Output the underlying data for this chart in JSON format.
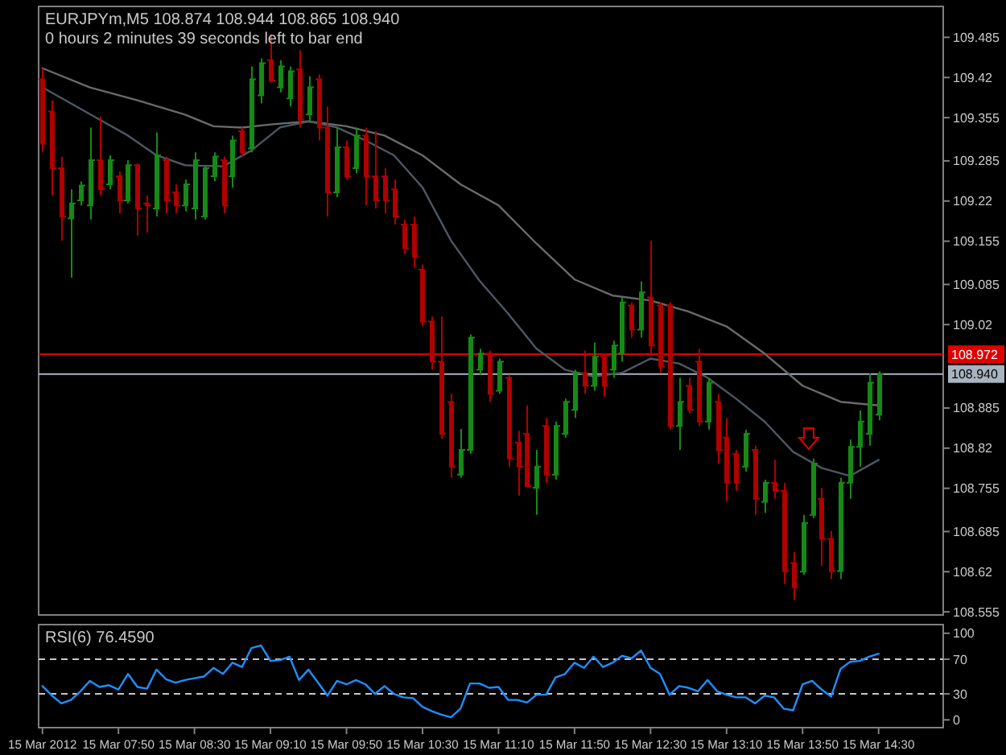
{
  "chart_data": [
    {
      "type": "candlestick",
      "title": "EURJPYm,M5  108.874 108.944 108.865 108.940",
      "subtitle": "0 hours 2 minutes 39 seconds left to bar end",
      "x": [
        "2012-03-15T07:10",
        "2012-03-15T07:15",
        "2012-03-15T07:20",
        "2012-03-15T07:25",
        "2012-03-15T07:30",
        "2012-03-15T07:35",
        "2012-03-15T07:40",
        "2012-03-15T07:45",
        "2012-03-15T07:50",
        "2012-03-15T07:55",
        "2012-03-15T08:00",
        "2012-03-15T08:05",
        "2012-03-15T08:10",
        "2012-03-15T08:15",
        "2012-03-15T08:20",
        "2012-03-15T08:25",
        "2012-03-15T08:30",
        "2012-03-15T08:35",
        "2012-03-15T08:40",
        "2012-03-15T08:45",
        "2012-03-15T08:50",
        "2012-03-15T08:55",
        "2012-03-15T09:00",
        "2012-03-15T09:05",
        "2012-03-15T09:10",
        "2012-03-15T09:15",
        "2012-03-15T09:20",
        "2012-03-15T09:25",
        "2012-03-15T09:30",
        "2012-03-15T09:35",
        "2012-03-15T09:40",
        "2012-03-15T09:45",
        "2012-03-15T09:50",
        "2012-03-15T09:55",
        "2012-03-15T10:00",
        "2012-03-15T10:05",
        "2012-03-15T10:10",
        "2012-03-15T10:15",
        "2012-03-15T10:20",
        "2012-03-15T10:25",
        "2012-03-15T10:30",
        "2012-03-15T10:35",
        "2012-03-15T10:40",
        "2012-03-15T10:45",
        "2012-03-15T10:50",
        "2012-03-15T10:55",
        "2012-03-15T11:00",
        "2012-03-15T11:05",
        "2012-03-15T11:10",
        "2012-03-15T11:15",
        "2012-03-15T11:20",
        "2012-03-15T11:25",
        "2012-03-15T11:30",
        "2012-03-15T11:35",
        "2012-03-15T11:40",
        "2012-03-15T11:45",
        "2012-03-15T11:50",
        "2012-03-15T11:55",
        "2012-03-15T12:00",
        "2012-03-15T12:05",
        "2012-03-15T12:10",
        "2012-03-15T12:15",
        "2012-03-15T12:20",
        "2012-03-15T12:25",
        "2012-03-15T12:30",
        "2012-03-15T12:35",
        "2012-03-15T12:40",
        "2012-03-15T12:45",
        "2012-03-15T12:50",
        "2012-03-15T12:55",
        "2012-03-15T13:00",
        "2012-03-15T13:05",
        "2012-03-15T13:10",
        "2012-03-15T13:15",
        "2012-03-15T13:20",
        "2012-03-15T13:25",
        "2012-03-15T13:30",
        "2012-03-15T13:35",
        "2012-03-15T13:40",
        "2012-03-15T13:45",
        "2012-03-15T13:50",
        "2012-03-15T13:55",
        "2012-03-15T14:00",
        "2012-03-15T14:05",
        "2012-03-15T14:10",
        "2012-03-15T14:15",
        "2012-03-15T14:20",
        "2012-03-15T14:25",
        "2012-03-15T14:30"
      ],
      "ohlc": [
        [
          109.417,
          109.435,
          109.299,
          109.313
        ],
        [
          109.365,
          109.383,
          109.229,
          109.273
        ],
        [
          109.273,
          109.292,
          109.156,
          109.195
        ],
        [
          109.192,
          109.239,
          109.096,
          109.216
        ],
        [
          109.221,
          109.252,
          109.213,
          109.245
        ],
        [
          109.213,
          109.339,
          109.19,
          109.286
        ],
        [
          109.286,
          109.357,
          109.229,
          109.239
        ],
        [
          109.247,
          109.294,
          109.239,
          109.286
        ],
        [
          109.26,
          109.268,
          109.2,
          109.221
        ],
        [
          109.221,
          109.286,
          109.216,
          109.278
        ],
        [
          109.278,
          109.281,
          109.164,
          109.208
        ],
        [
          109.216,
          109.229,
          109.169,
          109.213
        ],
        [
          109.208,
          109.331,
          109.195,
          109.294
        ],
        [
          109.286,
          109.292,
          109.2,
          109.221
        ],
        [
          109.234,
          109.247,
          109.2,
          109.213
        ],
        [
          109.213,
          109.255,
          109.203,
          109.247
        ],
        [
          109.208,
          109.299,
          109.19,
          109.286
        ],
        [
          109.195,
          109.278,
          109.19,
          109.273
        ],
        [
          109.26,
          109.299,
          109.252,
          109.292
        ],
        [
          109.286,
          109.292,
          109.2,
          109.213
        ],
        [
          109.26,
          109.326,
          109.242,
          109.318
        ],
        [
          109.333,
          109.339,
          109.292,
          109.299
        ],
        [
          109.305,
          109.438,
          109.299,
          109.417
        ],
        [
          109.391,
          109.451,
          109.378,
          109.443
        ],
        [
          109.448,
          109.49,
          109.412,
          109.415
        ],
        [
          109.404,
          109.448,
          109.396,
          109.438
        ],
        [
          109.386,
          109.438,
          109.373,
          109.43
        ],
        [
          109.433,
          109.464,
          109.339,
          109.352
        ],
        [
          109.36,
          109.422,
          109.347,
          109.404
        ],
        [
          109.417,
          109.425,
          109.318,
          109.339
        ],
        [
          109.339,
          109.373,
          109.195,
          109.234
        ],
        [
          109.234,
          109.339,
          109.226,
          109.307
        ],
        [
          109.307,
          109.318,
          109.255,
          109.26
        ],
        [
          109.273,
          109.339,
          109.265,
          109.326
        ],
        [
          109.326,
          109.339,
          109.213,
          109.26
        ],
        [
          109.26,
          109.333,
          109.208,
          109.221
        ],
        [
          109.26,
          109.273,
          109.2,
          109.221
        ],
        [
          109.239,
          109.255,
          109.182,
          109.195
        ],
        [
          109.182,
          109.19,
          109.135,
          109.143
        ],
        [
          109.182,
          109.195,
          109.112,
          109.13
        ],
        [
          109.109,
          109.117,
          109.017,
          109.025
        ],
        [
          109.025,
          109.033,
          108.947,
          108.96
        ],
        [
          108.96,
          109.033,
          108.835,
          108.843
        ],
        [
          108.895,
          108.908,
          108.772,
          108.79
        ],
        [
          108.777,
          108.851,
          108.772,
          108.817
        ],
        [
          108.817,
          109.004,
          108.811,
          108.999
        ],
        [
          108.947,
          108.981,
          108.939,
          108.973
        ],
        [
          108.973,
          108.978,
          108.895,
          108.908
        ],
        [
          108.913,
          108.965,
          108.908,
          108.96
        ],
        [
          108.934,
          108.939,
          108.79,
          108.803
        ],
        [
          108.829,
          108.848,
          108.743,
          108.79
        ],
        [
          108.843,
          108.889,
          108.756,
          108.758
        ],
        [
          108.756,
          108.817,
          108.712,
          108.79
        ],
        [
          108.856,
          108.869,
          108.764,
          108.777
        ],
        [
          108.777,
          108.863,
          108.769,
          108.856
        ],
        [
          108.843,
          108.9,
          108.837,
          108.895
        ],
        [
          108.882,
          108.947,
          108.869,
          108.942
        ],
        [
          108.942,
          108.978,
          108.908,
          108.921
        ],
        [
          108.921,
          108.991,
          108.913,
          108.968
        ],
        [
          108.968,
          108.973,
          108.903,
          108.921
        ],
        [
          108.947,
          108.994,
          108.934,
          108.986
        ],
        [
          108.973,
          109.064,
          108.96,
          109.056
        ],
        [
          109.051,
          109.056,
          108.999,
          109.012
        ],
        [
          109.012,
          109.09,
          108.999,
          109.072
        ],
        [
          109.064,
          109.156,
          108.973,
          108.986
        ],
        [
          109.051,
          109.056,
          108.942,
          108.952
        ],
        [
          109.051,
          109.056,
          108.85,
          108.856
        ],
        [
          108.856,
          108.934,
          108.817,
          108.895
        ],
        [
          108.921,
          108.934,
          108.876,
          108.882
        ],
        [
          108.96,
          108.981,
          108.856,
          108.863
        ],
        [
          108.863,
          108.934,
          108.85,
          108.926
        ],
        [
          108.895,
          108.908,
          108.795,
          108.817
        ],
        [
          108.837,
          108.869,
          108.733,
          108.764
        ],
        [
          108.811,
          108.817,
          108.751,
          108.764
        ],
        [
          108.79,
          108.85,
          108.782,
          108.843
        ],
        [
          108.817,
          108.824,
          108.712,
          108.738
        ],
        [
          108.733,
          108.769,
          108.715,
          108.764
        ],
        [
          108.764,
          108.801,
          108.738,
          108.751
        ],
        [
          108.751,
          108.764,
          108.6,
          108.621
        ],
        [
          108.634,
          108.652,
          108.574,
          108.595
        ],
        [
          108.62,
          108.712,
          108.615,
          108.699
        ],
        [
          108.712,
          108.803,
          108.707,
          108.795
        ],
        [
          108.738,
          108.756,
          108.629,
          108.673
        ],
        [
          108.673,
          108.686,
          108.608,
          108.621
        ],
        [
          108.621,
          108.772,
          108.608,
          108.764
        ],
        [
          108.764,
          108.834,
          108.738,
          108.822
        ],
        [
          108.822,
          108.881,
          108.79,
          108.863
        ],
        [
          108.843,
          108.941,
          108.824,
          108.926
        ],
        [
          108.874,
          108.944,
          108.865,
          108.94
        ]
      ],
      "colors": [
        "#b00000",
        "#b00000",
        "#b00000",
        "#168a16",
        "#168a16",
        "#168a16",
        "#b00000",
        "#168a16",
        "#b00000",
        "#168a16",
        "#b00000",
        "#b00000",
        "#168a16",
        "#b00000",
        "#b00000",
        "#168a16",
        "#168a16",
        "#168a16",
        "#168a16",
        "#b00000",
        "#168a16",
        "#b00000",
        "#168a16",
        "#168a16",
        "#b00000",
        "#168a16",
        "#168a16",
        "#b00000",
        "#168a16",
        "#b00000",
        "#b00000",
        "#168a16",
        "#b00000",
        "#168a16",
        "#b00000",
        "#b00000",
        "#b00000",
        "#b00000",
        "#b00000",
        "#b00000",
        "#b00000",
        "#b00000",
        "#b00000",
        "#b00000",
        "#168a16",
        "#168a16",
        "#168a16",
        "#b00000",
        "#168a16",
        "#b00000",
        "#b00000",
        "#b00000",
        "#168a16",
        "#b00000",
        "#168a16",
        "#168a16",
        "#168a16",
        "#b00000",
        "#168a16",
        "#b00000",
        "#168a16",
        "#168a16",
        "#b00000",
        "#168a16",
        "#b00000",
        "#b00000",
        "#b00000",
        "#168a16",
        "#b00000",
        "#b00000",
        "#168a16",
        "#b00000",
        "#b00000",
        "#b00000",
        "#168a16",
        "#b00000",
        "#168a16",
        "#b00000",
        "#b00000",
        "#b00000",
        "#168a16",
        "#168a16",
        "#b00000",
        "#b00000",
        "#168a16",
        "#168a16",
        "#168a16",
        "#168a16",
        "#168a16"
      ],
      "series": [
        {
          "type": "line",
          "color": "#6a6a6a",
          "x": [
            "2012-03-15T07:10",
            "2012-03-15T07:35",
            "2012-03-15T08:00",
            "2012-03-15T08:25",
            "2012-03-15T08:40",
            "2012-03-15T08:55",
            "2012-03-15T09:10",
            "2012-03-15T09:30",
            "2012-03-15T09:50",
            "2012-03-15T10:10",
            "2012-03-15T10:30",
            "2012-03-15T10:50",
            "2012-03-15T11:10",
            "2012-03-15T11:30",
            "2012-03-15T11:50",
            "2012-03-15T12:10",
            "2012-03-15T12:30",
            "2012-03-15T12:50",
            "2012-03-15T13:10",
            "2012-03-15T13:30",
            "2012-03-15T13:50",
            "2012-03-15T14:10",
            "2012-03-15T14:30"
          ],
          "values": [
            109.435,
            109.404,
            109.383,
            109.36,
            109.341,
            109.339,
            109.344,
            109.349,
            109.341,
            109.326,
            109.294,
            109.247,
            109.213,
            109.151,
            109.093,
            109.067,
            109.059,
            109.041,
            109.017,
            108.973,
            108.921,
            108.895,
            108.889
          ]
        },
        {
          "type": "line",
          "color": "#4c5862",
          "x": [
            "2012-03-15T07:10",
            "2012-03-15T07:25",
            "2012-03-15T07:40",
            "2012-03-15T07:55",
            "2012-03-15T08:10",
            "2012-03-15T08:25",
            "2012-03-15T08:45",
            "2012-03-15T09:00",
            "2012-03-15T09:15",
            "2012-03-15T09:30",
            "2012-03-15T09:45",
            "2012-03-15T10:00",
            "2012-03-15T10:15",
            "2012-03-15T10:30",
            "2012-03-15T10:45",
            "2012-03-15T11:00",
            "2012-03-15T11:15",
            "2012-03-15T11:30",
            "2012-03-15T11:45",
            "2012-03-15T12:00",
            "2012-03-15T12:15",
            "2012-03-15T12:30",
            "2012-03-15T12:45",
            "2012-03-15T13:00",
            "2012-03-15T13:15",
            "2012-03-15T13:30",
            "2012-03-15T13:45",
            "2012-03-15T14:00",
            "2012-03-15T14:15",
            "2012-03-15T14:30"
          ],
          "values": [
            109.404,
            109.378,
            109.352,
            109.326,
            109.294,
            109.278,
            109.276,
            109.302,
            109.339,
            109.349,
            109.339,
            109.318,
            109.294,
            109.242,
            109.156,
            109.091,
            109.038,
            108.981,
            108.947,
            108.936,
            108.942,
            108.965,
            108.957,
            108.934,
            108.9,
            108.863,
            108.814,
            108.788,
            108.775,
            108.801
          ]
        }
      ],
      "xlim": [
        "2012-03-15T07:08",
        "2012-03-15T15:04"
      ],
      "ylim": [
        108.55,
        109.535
      ],
      "yticks": [
        109.485,
        109.42,
        109.355,
        109.285,
        109.22,
        109.155,
        109.085,
        109.02,
        108.885,
        108.82,
        108.755,
        108.685,
        108.62,
        108.555
      ],
      "tick_labels": "y",
      "ref_lines": [
        {
          "axis": "y",
          "value": 108.972,
          "label": "108.972",
          "color": "#e00000"
        },
        {
          "axis": "y",
          "value": 108.94,
          "label": "108.940",
          "color": "#a8b4c0"
        }
      ]
    },
    {
      "type": "line",
      "title": "RSI(6) 76.4590",
      "x": [
        "2012-03-15T07:10",
        "2012-03-15T07:15",
        "2012-03-15T07:20",
        "2012-03-15T07:25",
        "2012-03-15T07:30",
        "2012-03-15T07:35",
        "2012-03-15T07:40",
        "2012-03-15T07:45",
        "2012-03-15T07:50",
        "2012-03-15T07:55",
        "2012-03-15T08:00",
        "2012-03-15T08:05",
        "2012-03-15T08:10",
        "2012-03-15T08:15",
        "2012-03-15T08:20",
        "2012-03-15T08:25",
        "2012-03-15T08:30",
        "2012-03-15T08:35",
        "2012-03-15T08:40",
        "2012-03-15T08:45",
        "2012-03-15T08:50",
        "2012-03-15T08:55",
        "2012-03-15T09:00",
        "2012-03-15T09:05",
        "2012-03-15T09:10",
        "2012-03-15T09:15",
        "2012-03-15T09:20",
        "2012-03-15T09:25",
        "2012-03-15T09:30",
        "2012-03-15T09:35",
        "2012-03-15T09:40",
        "2012-03-15T09:45",
        "2012-03-15T09:50",
        "2012-03-15T09:55",
        "2012-03-15T10:00",
        "2012-03-15T10:05",
        "2012-03-15T10:10",
        "2012-03-15T10:15",
        "2012-03-15T10:20",
        "2012-03-15T10:25",
        "2012-03-15T10:30",
        "2012-03-15T10:35",
        "2012-03-15T10:40",
        "2012-03-15T10:45",
        "2012-03-15T10:50",
        "2012-03-15T10:55",
        "2012-03-15T11:00",
        "2012-03-15T11:05",
        "2012-03-15T11:10",
        "2012-03-15T11:15",
        "2012-03-15T11:20",
        "2012-03-15T11:25",
        "2012-03-15T11:30",
        "2012-03-15T11:35",
        "2012-03-15T11:40",
        "2012-03-15T11:45",
        "2012-03-15T11:50",
        "2012-03-15T11:55",
        "2012-03-15T12:00",
        "2012-03-15T12:05",
        "2012-03-15T12:10",
        "2012-03-15T12:15",
        "2012-03-15T12:20",
        "2012-03-15T12:25",
        "2012-03-15T12:30",
        "2012-03-15T12:35",
        "2012-03-15T12:40",
        "2012-03-15T12:45",
        "2012-03-15T12:50",
        "2012-03-15T12:55",
        "2012-03-15T13:00",
        "2012-03-15T13:05",
        "2012-03-15T13:10",
        "2012-03-15T13:15",
        "2012-03-15T13:20",
        "2012-03-15T13:25",
        "2012-03-15T13:30",
        "2012-03-15T13:35",
        "2012-03-15T13:40",
        "2012-03-15T13:45",
        "2012-03-15T13:50",
        "2012-03-15T13:55",
        "2012-03-15T14:00",
        "2012-03-15T14:05",
        "2012-03-15T14:10",
        "2012-03-15T14:15",
        "2012-03-15T14:20",
        "2012-03-15T14:25",
        "2012-03-15T14:30"
      ],
      "series": [
        {
          "color": "#1e8fff",
          "values": [
            39,
            28,
            19,
            23,
            33,
            45,
            38,
            40,
            35,
            53,
            38,
            36,
            58,
            47,
            43,
            46,
            48,
            50,
            60,
            53,
            66,
            61,
            83,
            86,
            68,
            69,
            73,
            46,
            58,
            43,
            28,
            45,
            41,
            46,
            41,
            30,
            39,
            30,
            26,
            25,
            15,
            10,
            6,
            3,
            13,
            42,
            42,
            37,
            38,
            23,
            23,
            20,
            29,
            29,
            49,
            53,
            66,
            60,
            73,
            61,
            66,
            74,
            71,
            80,
            60,
            53,
            29,
            39,
            37,
            33,
            46,
            33,
            29,
            26,
            26,
            19,
            28,
            26,
            13,
            11,
            41,
            45,
            35,
            27,
            59,
            67,
            68,
            73,
            76.459
          ]
        }
      ],
      "xlim": [
        "2012-03-15T07:08",
        "2012-03-15T15:04"
      ],
      "ylim": [
        -9,
        110
      ],
      "yticks": [
        0,
        30,
        70,
        100
      ],
      "xticks": [
        {
          "value": "2012-03-15T07:10",
          "label": "15 Mar 2012"
        },
        {
          "value": "2012-03-15T07:50",
          "label": "15 Mar 07:50"
        },
        {
          "value": "2012-03-15T08:30",
          "label": "15 Mar 08:30"
        },
        {
          "value": "2012-03-15T09:10",
          "label": "15 Mar 09:10"
        },
        {
          "value": "2012-03-15T09:50",
          "label": "15 Mar 09:50"
        },
        {
          "value": "2012-03-15T10:30",
          "label": "15 Mar 10:30"
        },
        {
          "value": "2012-03-15T11:10",
          "label": "15 Mar 11:10"
        },
        {
          "value": "2012-03-15T11:50",
          "label": "15 Mar 11:50"
        },
        {
          "value": "2012-03-15T12:30",
          "label": "15 Mar 12:30"
        },
        {
          "value": "2012-03-15T13:10",
          "label": "15 Mar 13:10"
        },
        {
          "value": "2012-03-15T13:50",
          "label": "15 Mar 13:50"
        },
        {
          "value": "2012-03-15T14:30",
          "label": "15 Mar 14:30"
        }
      ],
      "ref_lines": [
        {
          "axis": "y",
          "value": 70,
          "color": "#c8c8c8",
          "line_style": "dashed"
        },
        {
          "axis": "y",
          "value": 30,
          "color": "#c8c8c8",
          "line_style": "dashed"
        }
      ]
    }
  ]
}
